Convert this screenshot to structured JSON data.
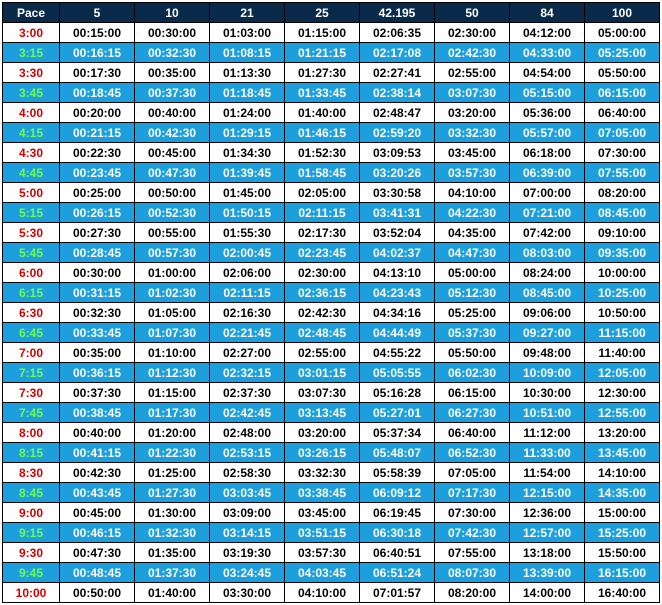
{
  "table": {
    "columns": [
      "Pace",
      "5",
      "10",
      "21",
      "25",
      "42.195",
      "50",
      "84",
      "100"
    ],
    "rows": [
      [
        "3:00",
        "00:15:00",
        "00:30:00",
        "01:03:00",
        "01:15:00",
        "02:06:35",
        "02:30:00",
        "04:12:00",
        "05:00:00"
      ],
      [
        "3:15",
        "00:16:15",
        "00:32:30",
        "01:08:15",
        "01:21:15",
        "02:17:08",
        "02:42:30",
        "04:33:00",
        "05:25:00"
      ],
      [
        "3:30",
        "00:17:30",
        "00:35:00",
        "01:13:30",
        "01:27:30",
        "02:27:41",
        "02:55:00",
        "04:54:00",
        "05:50:00"
      ],
      [
        "3:45",
        "00:18:45",
        "00:37:30",
        "01:18:45",
        "01:33:45",
        "02:38:14",
        "03:07:30",
        "05:15:00",
        "06:15:00"
      ],
      [
        "4:00",
        "00:20:00",
        "00:40:00",
        "01:24:00",
        "01:40:00",
        "02:48:47",
        "03:20:00",
        "05:36:00",
        "06:40:00"
      ],
      [
        "4:15",
        "00:21:15",
        "00:42:30",
        "01:29:15",
        "01:46:15",
        "02:59:20",
        "03:32:30",
        "05:57:00",
        "07:05:00"
      ],
      [
        "4:30",
        "00:22:30",
        "00:45:00",
        "01:34:30",
        "01:52:30",
        "03:09:53",
        "03:45:00",
        "06:18:00",
        "07:30:00"
      ],
      [
        "4:45",
        "00:23:45",
        "00:47:30",
        "01:39:45",
        "01:58:45",
        "03:20:26",
        "03:57:30",
        "06:39:00",
        "07:55:00"
      ],
      [
        "5:00",
        "00:25:00",
        "00:50:00",
        "01:45:00",
        "02:05:00",
        "03:30:58",
        "04:10:00",
        "07:00:00",
        "08:20:00"
      ],
      [
        "5:15",
        "00:26:15",
        "00:52:30",
        "01:50:15",
        "02:11:15",
        "03:41:31",
        "04:22:30",
        "07:21:00",
        "08:45:00"
      ],
      [
        "5:30",
        "00:27:30",
        "00:55:00",
        "01:55:30",
        "02:17:30",
        "03:52:04",
        "04:35:00",
        "07:42:00",
        "09:10:00"
      ],
      [
        "5:45",
        "00:28:45",
        "00:57:30",
        "02:00:45",
        "02:23:45",
        "04:02:37",
        "04:47:30",
        "08:03:00",
        "09:35:00"
      ],
      [
        "6:00",
        "00:30:00",
        "01:00:00",
        "02:06:00",
        "02:30:00",
        "04:13:10",
        "05:00:00",
        "08:24:00",
        "10:00:00"
      ],
      [
        "6:15",
        "00:31:15",
        "01:02:30",
        "02:11:15",
        "02:36:15",
        "04:23:43",
        "05:12:30",
        "08:45:00",
        "10:25:00"
      ],
      [
        "6:30",
        "00:32:30",
        "01:05:00",
        "02:16:30",
        "02:42:30",
        "04:34:16",
        "05:25:00",
        "09:06:00",
        "10:50:00"
      ],
      [
        "6:45",
        "00:33:45",
        "01:07:30",
        "02:21:45",
        "02:48:45",
        "04:44:49",
        "05:37:30",
        "09:27:00",
        "11:15:00"
      ],
      [
        "7:00",
        "00:35:00",
        "01:10:00",
        "02:27:00",
        "02:55:00",
        "04:55:22",
        "05:50:00",
        "09:48:00",
        "11:40:00"
      ],
      [
        "7:15",
        "00:36:15",
        "01:12:30",
        "02:32:15",
        "03:01:15",
        "05:05:55",
        "06:02:30",
        "10:09:00",
        "12:05:00"
      ],
      [
        "7:30",
        "00:37:30",
        "01:15:00",
        "02:37:30",
        "03:07:30",
        "05:16:28",
        "06:15:00",
        "10:30:00",
        "12:30:00"
      ],
      [
        "7:45",
        "00:38:45",
        "01:17:30",
        "02:42:45",
        "03:13:45",
        "05:27:01",
        "06:27:30",
        "10:51:00",
        "12:55:00"
      ],
      [
        "8:00",
        "00:40:00",
        "01:20:00",
        "02:48:00",
        "03:20:00",
        "05:37:34",
        "06:40:00",
        "11:12:00",
        "13:20:00"
      ],
      [
        "8:15",
        "00:41:15",
        "01:22:30",
        "02:53:15",
        "03:26:15",
        "05:48:07",
        "06:52:30",
        "11:33:00",
        "13:45:00"
      ],
      [
        "8:30",
        "00:42:30",
        "01:25:00",
        "02:58:30",
        "03:32:30",
        "05:58:39",
        "07:05:00",
        "11:54:00",
        "14:10:00"
      ],
      [
        "8:45",
        "00:43:45",
        "01:27:30",
        "03:03:45",
        "03:38:45",
        "06:09:12",
        "07:17:30",
        "12:15:00",
        "14:35:00"
      ],
      [
        "9:00",
        "00:45:00",
        "01:30:00",
        "03:09:00",
        "03:45:00",
        "06:19:45",
        "07:30:00",
        "12:36:00",
        "15:00:00"
      ],
      [
        "9:15",
        "00:46:15",
        "01:32:30",
        "03:14:15",
        "03:51:15",
        "06:30:18",
        "07:42:30",
        "12:57:00",
        "15:25:00"
      ],
      [
        "9:30",
        "00:47:30",
        "01:35:00",
        "03:19:30",
        "03:57:30",
        "06:40:51",
        "07:55:00",
        "13:18:00",
        "15:50:00"
      ],
      [
        "9:45",
        "00:48:45",
        "01:37:30",
        "03:24:45",
        "04:03:45",
        "06:51:24",
        "08:07:30",
        "13:39:00",
        "16:15:00"
      ],
      [
        "10:00",
        "00:50:00",
        "01:40:00",
        "03:30:00",
        "04:10:00",
        "07:01:57",
        "08:20:00",
        "14:00:00",
        "16:40:00"
      ]
    ],
    "header_bg": "#0a2a4a",
    "header_color": "#ffffff",
    "odd_row_bg": "#1d9fdd",
    "odd_row_color": "#ffffff",
    "odd_pace_color": "#6fff4a",
    "even_row_bg": "#ffffff",
    "even_row_color": "#000000",
    "even_pace_color": "#d40000",
    "border_color": "#000000",
    "font_size": 12,
    "font_weight": "bold"
  }
}
